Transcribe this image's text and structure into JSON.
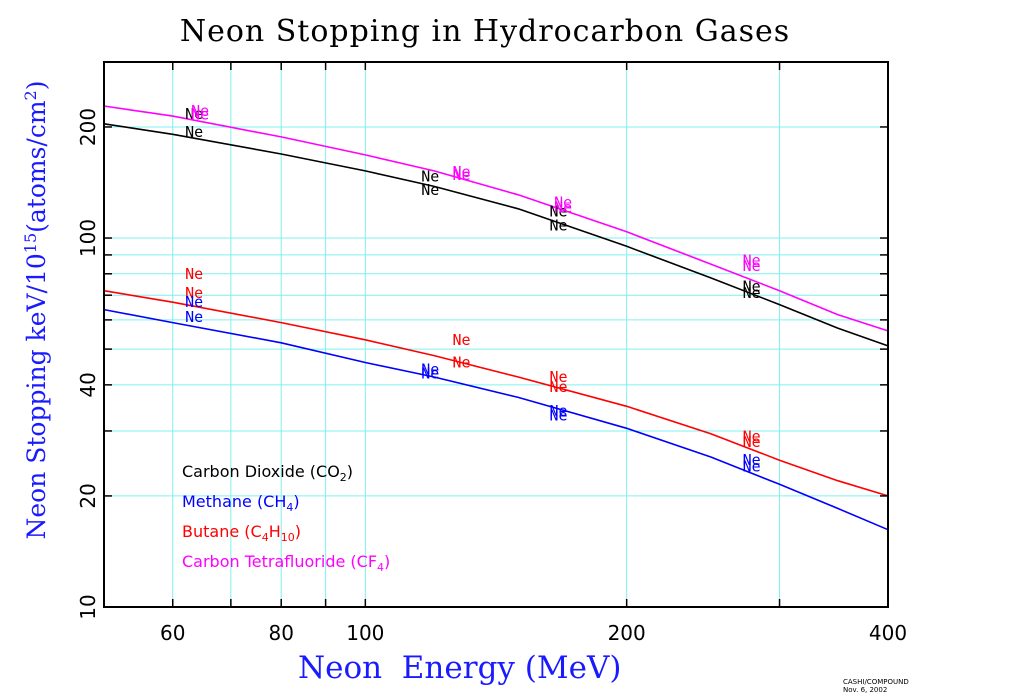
{
  "chart_data": {
    "type": "line",
    "title": "Neon Stopping in Hydrocarbon Gases",
    "xlabel": "Neon  Energy (MeV)",
    "ylabel": "Neon Stopping keV/10^15(atoms/cm^2)",
    "ylabel_base": "Neon Stopping keV/10",
    "ylabel_exp": "15",
    "ylabel_unit": "(atoms/cm",
    "ylabel_unit_exp": "2",
    "ylabel_close": ")",
    "x_scale": "log",
    "y_scale": "log",
    "xlim": [
      50,
      400
    ],
    "ylim": [
      10,
      300
    ],
    "x_ticks": [
      60,
      80,
      100,
      200,
      400
    ],
    "y_ticks": [
      10,
      20,
      40,
      100,
      200
    ],
    "grid": true,
    "legend_position": "bottom-left",
    "point_label": "Ne",
    "series": [
      {
        "name": "Carbon Dioxide (CO2)",
        "name_main": "Carbon Dioxide (CO",
        "name_sub": "2",
        "name_end": ")",
        "color": "#000000",
        "x": [
          50,
          60,
          80,
          100,
          120,
          150,
          200,
          250,
          300,
          350,
          400
        ],
        "y": [
          204,
          191,
          169,
          152,
          138,
          120,
          95,
          78,
          66,
          57,
          51
        ]
      },
      {
        "name": "Methane (CH4)",
        "name_main": "Methane (CH",
        "name_sub": "4",
        "name_end": ")",
        "color": "#0000ff",
        "x": [
          50,
          60,
          80,
          100,
          120,
          150,
          200,
          250,
          300,
          350,
          400
        ],
        "y": [
          64,
          59,
          52,
          46,
          42,
          37,
          30.5,
          25.5,
          21.5,
          18.5,
          16.2
        ]
      },
      {
        "name": "Butane (C4H10)",
        "name_main": "Butane (C",
        "name_sub": "4",
        "name_mid": "H",
        "name_sub2": "10",
        "name_end": ")",
        "color": "#ff0000",
        "x": [
          50,
          60,
          80,
          100,
          120,
          150,
          200,
          250,
          300,
          350,
          400
        ],
        "y": [
          72,
          67,
          59,
          53,
          48,
          42,
          35,
          29.5,
          25,
          22,
          20
        ]
      },
      {
        "name": "Carbon Tetrafluoride (CF4)",
        "name_main": "Carbon Tetrafluoride (CF",
        "name_sub": "4",
        "name_end": ")",
        "color": "#ff00ff",
        "x": [
          50,
          60,
          80,
          100,
          120,
          150,
          200,
          250,
          300,
          350,
          400
        ],
        "y": [
          228,
          214,
          188,
          168,
          152,
          131,
          104,
          85,
          72,
          62,
          56
        ]
      }
    ],
    "point_markers": [
      {
        "color": "#000000",
        "x": 62,
        "y": 217
      },
      {
        "color": "#000000",
        "x": 62,
        "y": 194
      },
      {
        "color": "#000000",
        "x": 116,
        "y": 147
      },
      {
        "color": "#000000",
        "x": 116,
        "y": 135
      },
      {
        "color": "#000000",
        "x": 163,
        "y": 118
      },
      {
        "color": "#000000",
        "x": 163,
        "y": 108
      },
      {
        "color": "#000000",
        "x": 272,
        "y": 74
      },
      {
        "color": "#000000",
        "x": 272,
        "y": 71
      },
      {
        "color": "#ff00ff",
        "x": 63,
        "y": 221
      },
      {
        "color": "#ff00ff",
        "x": 63,
        "y": 216
      },
      {
        "color": "#ff00ff",
        "x": 126,
        "y": 151
      },
      {
        "color": "#ff00ff",
        "x": 126,
        "y": 148
      },
      {
        "color": "#ff00ff",
        "x": 165,
        "y": 125
      },
      {
        "color": "#ff00ff",
        "x": 165,
        "y": 121
      },
      {
        "color": "#ff00ff",
        "x": 272,
        "y": 87
      },
      {
        "color": "#ff00ff",
        "x": 272,
        "y": 84
      },
      {
        "color": "#ff0000",
        "x": 62,
        "y": 80
      },
      {
        "color": "#ff0000",
        "x": 62,
        "y": 71
      },
      {
        "color": "#ff0000",
        "x": 126,
        "y": 53
      },
      {
        "color": "#ff0000",
        "x": 126,
        "y": 46
      },
      {
        "color": "#ff0000",
        "x": 163,
        "y": 42
      },
      {
        "color": "#ff0000",
        "x": 163,
        "y": 39.5
      },
      {
        "color": "#ff0000",
        "x": 272,
        "y": 29
      },
      {
        "color": "#ff0000",
        "x": 272,
        "y": 28
      },
      {
        "color": "#0000ff",
        "x": 62,
        "y": 67
      },
      {
        "color": "#0000ff",
        "x": 62,
        "y": 61
      },
      {
        "color": "#0000ff",
        "x": 116,
        "y": 44
      },
      {
        "color": "#0000ff",
        "x": 116,
        "y": 43
      },
      {
        "color": "#0000ff",
        "x": 163,
        "y": 34
      },
      {
        "color": "#0000ff",
        "x": 163,
        "y": 33
      },
      {
        "color": "#0000ff",
        "x": 272,
        "y": 25
      },
      {
        "color": "#0000ff",
        "x": 272,
        "y": 24
      }
    ]
  },
  "credit_line1": "CASHI/COMPOUND",
  "credit_line2": "Nov. 6, 2002"
}
